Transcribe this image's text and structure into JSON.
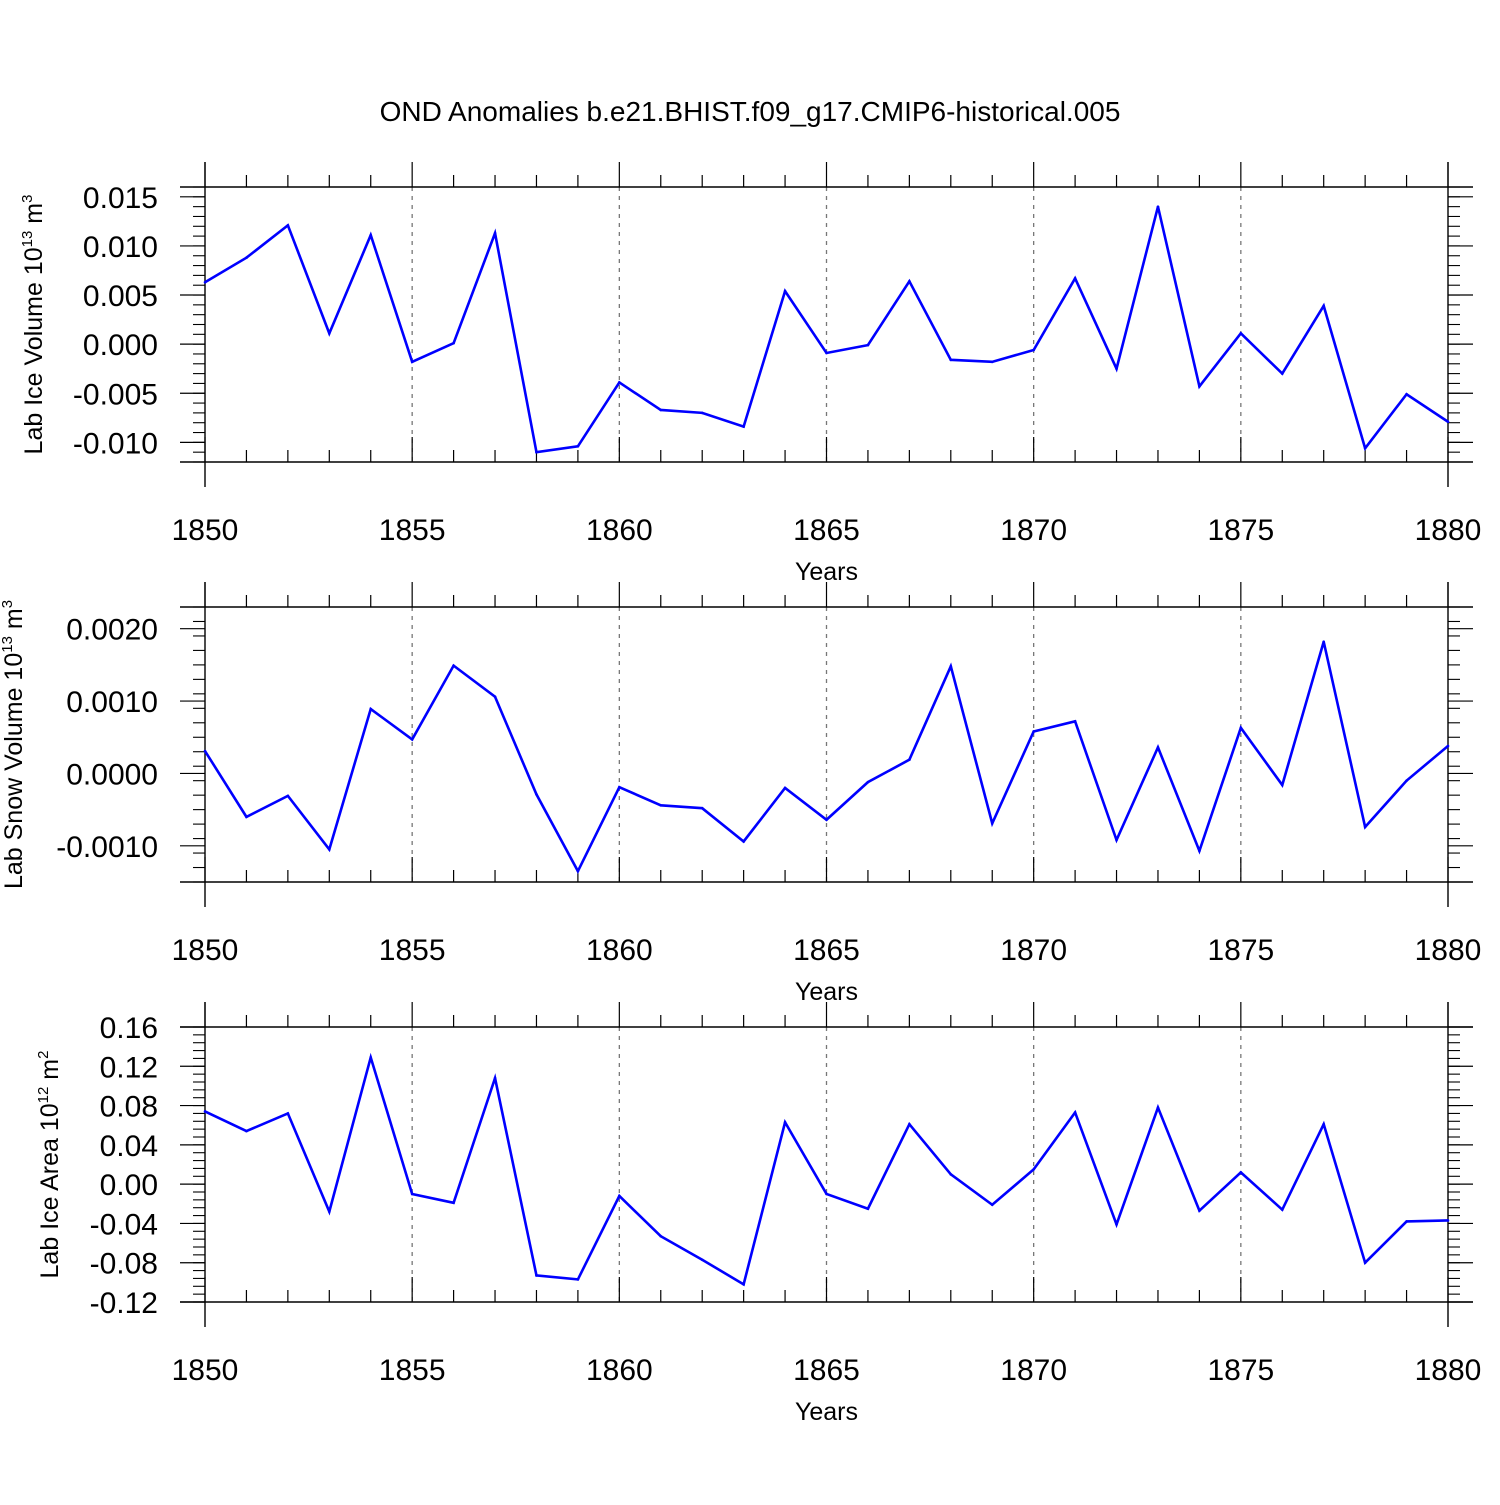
{
  "title": "OND Anomalies b.e21.BHIST.f09_g17.CMIP6-historical.005",
  "line_color": "#0000ff",
  "chart_data": [
    {
      "type": "line",
      "ylabel_main": "Lab Ice Volume 10",
      "ylabel_exp": "13",
      "ylabel_unit": "m",
      "ylabel_unit_exp": "3",
      "xlabel": "Years",
      "xlim": [
        1850,
        1880
      ],
      "ylim": [
        -0.012,
        0.016
      ],
      "xticks": [
        1850,
        1855,
        1860,
        1865,
        1870,
        1875,
        1880
      ],
      "yticks": [
        -0.01,
        -0.005,
        0.0,
        0.005,
        0.01,
        0.015
      ],
      "ytick_labels": [
        "-0.010",
        "-0.005",
        "0.000",
        "0.005",
        "0.010",
        "0.015"
      ],
      "grid": "vertical-dashed",
      "series": [
        {
          "x": [
            1850,
            1851,
            1852,
            1853,
            1854,
            1855,
            1856,
            1857,
            1858,
            1859,
            1860,
            1861,
            1862,
            1863,
            1864,
            1865,
            1866,
            1867,
            1868,
            1869,
            1870,
            1871,
            1872,
            1873,
            1874,
            1875,
            1876,
            1877,
            1878,
            1879,
            1880
          ],
          "values": [
            0.0063,
            0.0088,
            0.0121,
            0.0011,
            0.0111,
            -0.0018,
            0.0001,
            0.0113,
            -0.011,
            -0.0104,
            -0.0039,
            -0.0067,
            -0.007,
            -0.0084,
            0.0054,
            -0.0009,
            -0.0001,
            0.0064,
            -0.0016,
            -0.0018,
            -0.0006,
            0.0067,
            -0.0025,
            0.014,
            -0.0043,
            0.0011,
            -0.003,
            0.0039,
            -0.0106,
            -0.0051,
            -0.0079
          ]
        }
      ]
    },
    {
      "type": "line",
      "ylabel_main": "Lab Snow Volume 10",
      "ylabel_exp": "13",
      "ylabel_unit": "m",
      "ylabel_unit_exp": "3",
      "xlabel": "Years",
      "xlim": [
        1850,
        1880
      ],
      "ylim": [
        -0.0015,
        0.0023
      ],
      "xticks": [
        1850,
        1855,
        1860,
        1865,
        1870,
        1875,
        1880
      ],
      "yticks": [
        -0.001,
        0.0,
        0.001,
        0.002
      ],
      "ytick_labels": [
        "-0.0010",
        "0.0000",
        "0.0010",
        "0.0020"
      ],
      "grid": "vertical-dashed",
      "series": [
        {
          "x": [
            1850,
            1851,
            1852,
            1853,
            1854,
            1855,
            1856,
            1857,
            1858,
            1859,
            1860,
            1861,
            1862,
            1863,
            1864,
            1865,
            1866,
            1867,
            1868,
            1869,
            1870,
            1871,
            1872,
            1873,
            1874,
            1875,
            1876,
            1877,
            1878,
            1879,
            1880
          ],
          "values": [
            0.00031,
            -0.0006,
            -0.00031,
            -0.00105,
            0.00089,
            0.00047,
            0.00149,
            0.00106,
            -0.00029,
            -0.00135,
            -0.00019,
            -0.00044,
            -0.00048,
            -0.00094,
            -0.0002,
            -0.00064,
            -0.00012,
            0.00019,
            0.00148,
            -0.00069,
            0.00058,
            0.00072,
            -0.00092,
            0.00036,
            -0.00107,
            0.00063,
            -0.00016,
            0.00182,
            -0.00074,
            -0.0001,
            0.00038
          ]
        }
      ]
    },
    {
      "type": "line",
      "ylabel_main": "Lab Ice Area 10",
      "ylabel_exp": "12",
      "ylabel_unit": "m",
      "ylabel_unit_exp": "2",
      "xlabel": "Years",
      "xlim": [
        1850,
        1880
      ],
      "ylim": [
        -0.12,
        0.16
      ],
      "xticks": [
        1850,
        1855,
        1860,
        1865,
        1870,
        1875,
        1880
      ],
      "yticks": [
        -0.12,
        -0.08,
        -0.04,
        0.0,
        0.04,
        0.08,
        0.12,
        0.16
      ],
      "ytick_labels": [
        "-0.12",
        "-0.08",
        "-0.04",
        "0.00",
        "0.04",
        "0.08",
        "0.12",
        "0.16"
      ],
      "grid": "vertical-dashed",
      "series": [
        {
          "x": [
            1850,
            1851,
            1852,
            1853,
            1854,
            1855,
            1856,
            1857,
            1858,
            1859,
            1860,
            1861,
            1862,
            1863,
            1864,
            1865,
            1866,
            1867,
            1868,
            1869,
            1870,
            1871,
            1872,
            1873,
            1874,
            1875,
            1876,
            1877,
            1878,
            1879,
            1880
          ],
          "values": [
            0.074,
            0.054,
            0.072,
            -0.028,
            0.129,
            -0.01,
            -0.019,
            0.108,
            -0.093,
            -0.097,
            -0.012,
            -0.053,
            -0.077,
            -0.102,
            0.063,
            -0.01,
            -0.025,
            0.061,
            0.01,
            -0.021,
            0.015,
            0.073,
            -0.041,
            0.078,
            -0.027,
            0.012,
            -0.026,
            0.061,
            -0.08,
            -0.038,
            -0.037
          ]
        }
      ]
    }
  ]
}
